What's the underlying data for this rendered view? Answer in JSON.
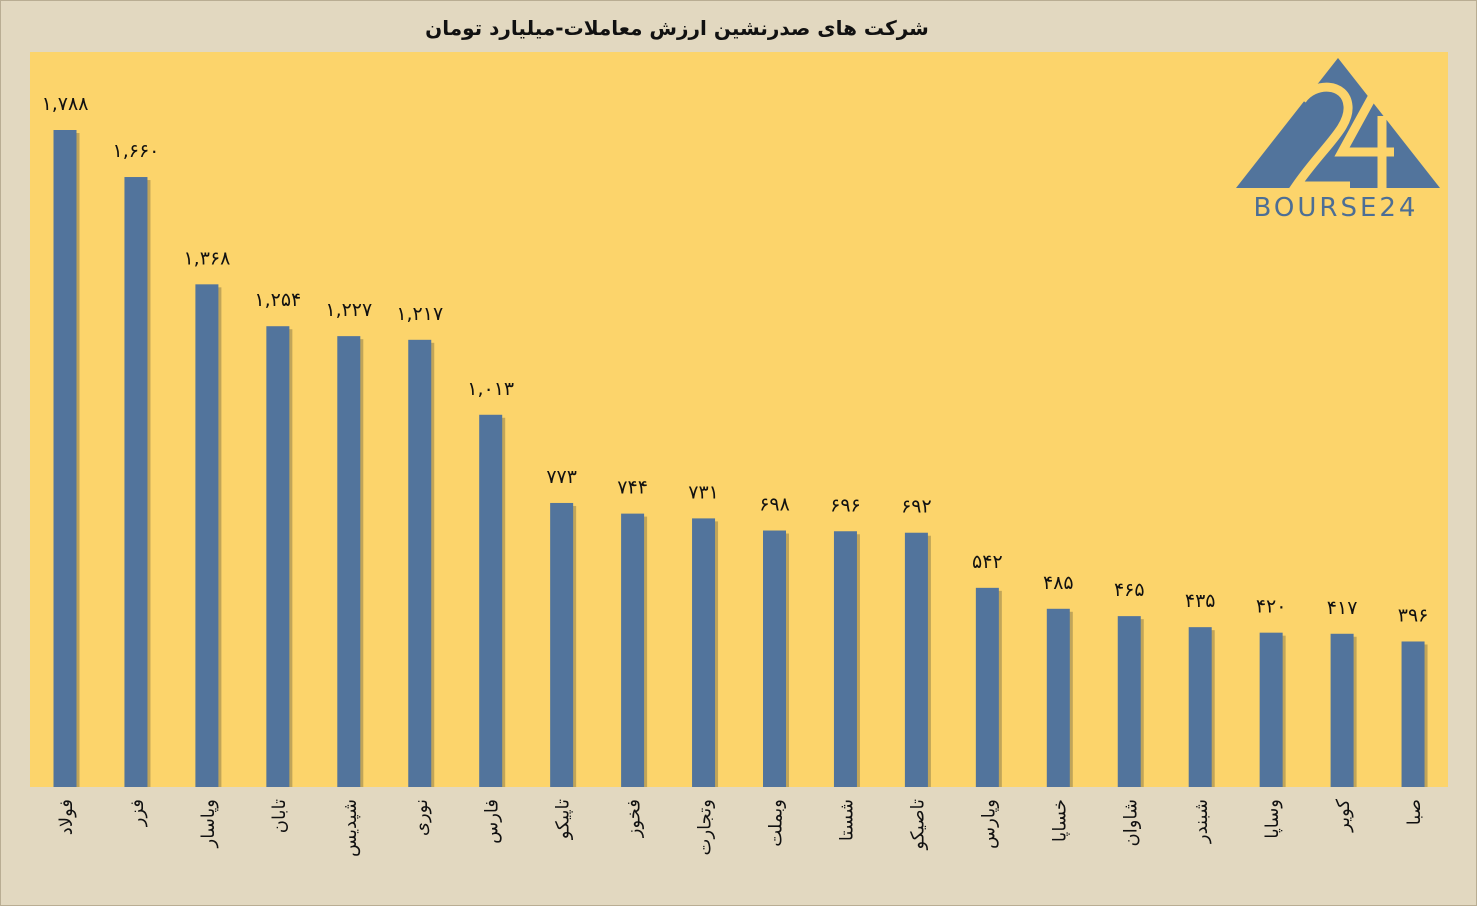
{
  "chart_data": {
    "type": "bar",
    "title": "شرکت های صدرنشین ارزش معاملات-میلیارد تومان",
    "categories": [
      "فولاد",
      "فزر",
      "وپاسار",
      "تابان",
      "شپدیس",
      "نوری",
      "فارس",
      "تاپیکو",
      "فخوز",
      "وتجارت",
      "وبملت",
      "شستا",
      "تاصیکو",
      "وپارس",
      "خساپا",
      "شاوان",
      "شبندر",
      "وساپا",
      "کویر",
      "صبا"
    ],
    "values": [
      1788,
      1660,
      1368,
      1254,
      1227,
      1217,
      1013,
      773,
      744,
      731,
      698,
      696,
      692,
      542,
      485,
      465,
      435,
      420,
      417,
      396
    ],
    "value_labels": [
      "۱,۷۸۸",
      "۱,۶۶۰",
      "۱,۳۶۸",
      "۱,۲۵۴",
      "۱,۲۲۷",
      "۱,۲۱۷",
      "۱,۰۱۳",
      "۷۷۳",
      "۷۴۴",
      "۷۳۱",
      "۶۹۸",
      "۶۹۶",
      "۶۹۲",
      "۵۴۲",
      "۴۸۵",
      "۴۶۵",
      "۴۳۵",
      "۴۲۰",
      "۴۱۷",
      "۳۹۶"
    ],
    "xlabel": "",
    "ylabel": "",
    "ylim": [
      0,
      1788
    ],
    "grid": false,
    "legend": "none",
    "colors": {
      "bar": "#52749c",
      "bar_shadow": "#8f7d4a",
      "plot_background": "#fcd46b",
      "page_background": "#e2d8c0"
    }
  },
  "watermark": {
    "text": "BOURSE24",
    "number": "24",
    "icon": "bourse24-logo-icon"
  }
}
